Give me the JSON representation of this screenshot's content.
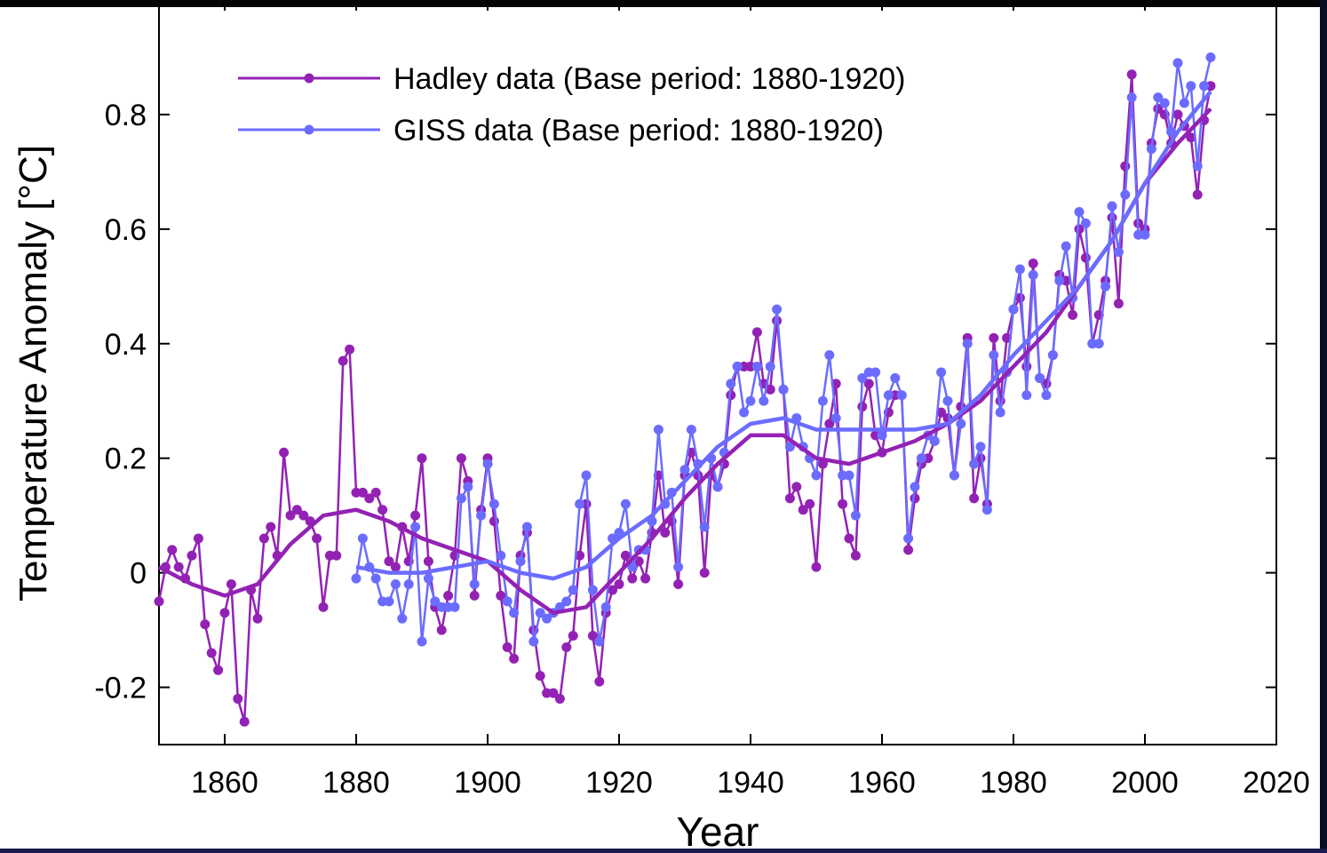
{
  "chart_data": {
    "type": "line",
    "xlabel": "Year",
    "ylabel": "Temperature Anomaly [°C]",
    "xlim": [
      1850,
      2020
    ],
    "ylim": [
      -0.3,
      1.0
    ],
    "xticks": [
      1860,
      1880,
      1900,
      1920,
      1940,
      1960,
      1980,
      2000,
      2020
    ],
    "yticks": [
      -0.2,
      0,
      0.2,
      0.4,
      0.6,
      0.8
    ],
    "legend": "upper left",
    "x": [
      1850,
      1851,
      1852,
      1853,
      1854,
      1855,
      1856,
      1857,
      1858,
      1859,
      1860,
      1861,
      1862,
      1863,
      1864,
      1865,
      1866,
      1867,
      1868,
      1869,
      1870,
      1871,
      1872,
      1873,
      1874,
      1875,
      1876,
      1877,
      1878,
      1879,
      1880,
      1881,
      1882,
      1883,
      1884,
      1885,
      1886,
      1887,
      1888,
      1889,
      1890,
      1891,
      1892,
      1893,
      1894,
      1895,
      1896,
      1897,
      1898,
      1899,
      1900,
      1901,
      1902,
      1903,
      1904,
      1905,
      1906,
      1907,
      1908,
      1909,
      1910,
      1911,
      1912,
      1913,
      1914,
      1915,
      1916,
      1917,
      1918,
      1919,
      1920,
      1921,
      1922,
      1923,
      1924,
      1925,
      1926,
      1927,
      1928,
      1929,
      1930,
      1931,
      1932,
      1933,
      1934,
      1935,
      1936,
      1937,
      1938,
      1939,
      1940,
      1941,
      1942,
      1943,
      1944,
      1945,
      1946,
      1947,
      1948,
      1949,
      1950,
      1951,
      1952,
      1953,
      1954,
      1955,
      1956,
      1957,
      1958,
      1959,
      1960,
      1961,
      1962,
      1963,
      1964,
      1965,
      1966,
      1967,
      1968,
      1969,
      1970,
      1971,
      1972,
      1973,
      1974,
      1975,
      1976,
      1977,
      1978,
      1979,
      1980,
      1981,
      1982,
      1983,
      1984,
      1985,
      1986,
      1987,
      1988,
      1989,
      1990,
      1991,
      1992,
      1993,
      1994,
      1995,
      1996,
      1997,
      1998,
      1999,
      2000,
      2001,
      2002,
      2003,
      2004,
      2005,
      2006,
      2007,
      2008,
      2009,
      2010
    ],
    "trend_x": [
      1850,
      1855,
      1860,
      1865,
      1870,
      1875,
      1880,
      1885,
      1890,
      1895,
      1900,
      1905,
      1910,
      1915,
      1920,
      1925,
      1930,
      1935,
      1940,
      1945,
      1950,
      1955,
      1960,
      1965,
      1970,
      1975,
      1980,
      1985,
      1990,
      1995,
      2000,
      2005,
      2010
    ],
    "series": [
      {
        "name": "Hadley data (Base period: 1880-1920)",
        "color": "#9322b4",
        "values": [
          -0.05,
          0.01,
          0.04,
          0.01,
          -0.01,
          0.03,
          0.06,
          -0.09,
          -0.14,
          -0.17,
          -0.07,
          -0.02,
          -0.22,
          -0.26,
          -0.03,
          -0.08,
          0.06,
          0.08,
          0.03,
          0.21,
          0.1,
          0.11,
          0.1,
          0.09,
          0.06,
          -0.06,
          0.03,
          0.03,
          0.37,
          0.39,
          0.14,
          0.14,
          0.13,
          0.14,
          0.11,
          0.02,
          0.01,
          0.08,
          0.02,
          0.1,
          0.2,
          0.02,
          -0.06,
          -0.1,
          -0.04,
          0.03,
          0.2,
          0.16,
          -0.04,
          0.11,
          0.2,
          0.09,
          -0.04,
          -0.13,
          -0.15,
          0.03,
          0.07,
          -0.1,
          -0.18,
          -0.21,
          -0.21,
          -0.22,
          -0.13,
          -0.11,
          0.03,
          0.12,
          -0.11,
          -0.19,
          -0.07,
          -0.03,
          -0.02,
          0.03,
          -0.01,
          0.02,
          -0.01,
          0.07,
          0.17,
          0.07,
          0.09,
          -0.02,
          0.17,
          0.21,
          0.17,
          0.0,
          0.17,
          0.15,
          0.19,
          0.31,
          0.36,
          0.36,
          0.36,
          0.42,
          0.33,
          0.32,
          0.44,
          0.32,
          0.13,
          0.15,
          0.11,
          0.12,
          0.01,
          0.19,
          0.26,
          0.33,
          0.12,
          0.06,
          0.03,
          0.29,
          0.33,
          0.24,
          0.21,
          0.28,
          0.31,
          0.31,
          0.04,
          0.13,
          0.19,
          0.2,
          0.23,
          0.28,
          0.27,
          0.17,
          0.29,
          0.41,
          0.13,
          0.2,
          0.12,
          0.41,
          0.3,
          0.41,
          0.46,
          0.48,
          0.36,
          0.54,
          0.34,
          0.33,
          0.38,
          0.52,
          0.51,
          0.45,
          0.6,
          0.55,
          0.4,
          0.45,
          0.51,
          0.62,
          0.47,
          0.71,
          0.87,
          0.61,
          0.6,
          0.75,
          0.81,
          0.8,
          0.75,
          0.8,
          0.78,
          0.76,
          0.66,
          0.79,
          0.85
        ],
        "trend": [
          0.01,
          -0.02,
          -0.04,
          -0.02,
          0.05,
          0.1,
          0.11,
          0.09,
          0.06,
          0.04,
          0.02,
          -0.03,
          -0.07,
          -0.06,
          0.0,
          0.06,
          0.13,
          0.19,
          0.24,
          0.24,
          0.2,
          0.19,
          0.21,
          0.23,
          0.26,
          0.3,
          0.36,
          0.42,
          0.5,
          0.58,
          0.68,
          0.75,
          0.81
        ]
      },
      {
        "name": "GISS data (Base period: 1880-1920)",
        "color": "#6b6cff",
        "values": [
          null,
          null,
          null,
          null,
          null,
          null,
          null,
          null,
          null,
          null,
          null,
          null,
          null,
          null,
          null,
          null,
          null,
          null,
          null,
          null,
          null,
          null,
          null,
          null,
          null,
          null,
          null,
          null,
          null,
          null,
          -0.01,
          0.06,
          0.01,
          -0.01,
          -0.05,
          -0.05,
          -0.02,
          -0.08,
          -0.02,
          0.08,
          -0.12,
          -0.01,
          -0.05,
          -0.06,
          -0.06,
          -0.06,
          0.13,
          0.15,
          -0.02,
          0.1,
          0.19,
          0.12,
          0.03,
          -0.05,
          -0.07,
          0.02,
          0.08,
          -0.12,
          -0.07,
          -0.08,
          -0.07,
          -0.06,
          -0.05,
          -0.03,
          0.12,
          0.17,
          -0.03,
          -0.12,
          -0.06,
          0.06,
          0.07,
          0.12,
          0.01,
          0.04,
          0.04,
          0.09,
          0.25,
          0.12,
          0.14,
          0.01,
          0.18,
          0.25,
          0.19,
          0.08,
          0.2,
          0.15,
          0.21,
          0.33,
          0.36,
          0.28,
          0.3,
          0.36,
          0.3,
          0.36,
          0.46,
          0.32,
          0.22,
          0.27,
          0.22,
          0.2,
          0.17,
          0.3,
          0.38,
          0.27,
          0.17,
          0.17,
          0.1,
          0.34,
          0.35,
          0.35,
          0.24,
          0.31,
          0.34,
          0.31,
          0.06,
          0.15,
          0.2,
          0.24,
          0.23,
          0.35,
          0.3,
          0.17,
          0.26,
          0.4,
          0.19,
          0.22,
          0.11,
          0.38,
          0.28,
          0.35,
          0.46,
          0.53,
          0.31,
          0.52,
          0.34,
          0.31,
          0.38,
          0.51,
          0.57,
          0.48,
          0.63,
          0.61,
          0.4,
          0.4,
          0.5,
          0.64,
          0.56,
          0.66,
          0.83,
          0.59,
          0.59,
          0.74,
          0.83,
          0.82,
          0.77,
          0.89,
          0.82,
          0.85,
          0.71,
          0.85,
          0.9
        ],
        "trend": [
          null,
          null,
          null,
          null,
          null,
          null,
          0.01,
          0.0,
          0.0,
          0.01,
          0.02,
          0.0,
          -0.01,
          0.01,
          0.06,
          0.1,
          0.16,
          0.22,
          0.26,
          0.27,
          0.25,
          0.25,
          0.25,
          0.25,
          0.26,
          0.31,
          0.38,
          0.44,
          0.5,
          0.58,
          0.68,
          0.77,
          0.84
        ]
      }
    ]
  }
}
